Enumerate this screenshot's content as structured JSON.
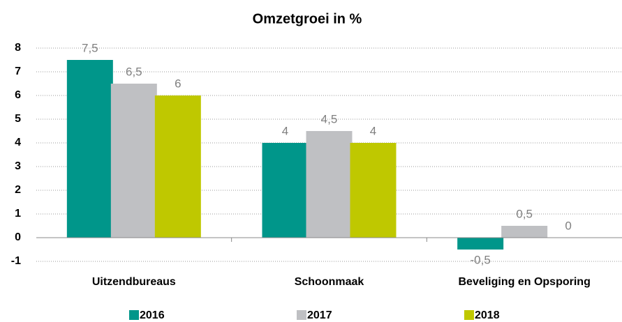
{
  "chart_data": {
    "type": "bar",
    "title": "Omzetgroei in %",
    "categories": [
      "Uitzendbureaus",
      "Schoonmaak",
      "Beveliging en Opsporing"
    ],
    "series": [
      {
        "name": "2016",
        "color": "#00968a",
        "values": [
          7.5,
          4,
          -0.5
        ],
        "value_labels": [
          "7,5",
          "4",
          "-0,5"
        ]
      },
      {
        "name": "2017",
        "color": "#bfc0c3",
        "values": [
          6.5,
          4.5,
          0.5
        ],
        "value_labels": [
          "6,5",
          "4,5",
          "0,5"
        ]
      },
      {
        "name": "2018",
        "color": "#bfc800",
        "values": [
          6,
          4,
          0
        ],
        "value_labels": [
          "6",
          "4",
          "0"
        ]
      }
    ],
    "ylim": [
      -1,
      8
    ],
    "yticks": [
      -1,
      0,
      1,
      2,
      3,
      4,
      5,
      6,
      7,
      8
    ],
    "grid": true,
    "legend": "bottom"
  }
}
